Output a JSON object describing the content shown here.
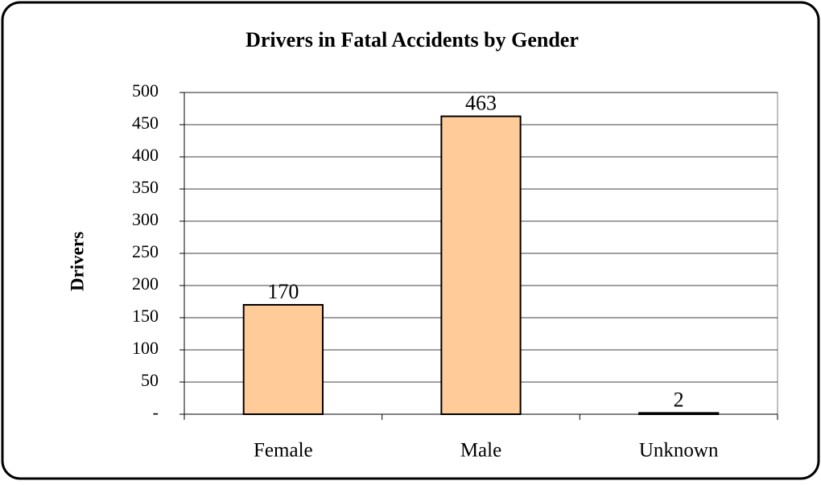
{
  "chart_data": {
    "type": "bar",
    "title": "Drivers in Fatal Accidents by Gender",
    "y_label": "Drivers",
    "categories": [
      "Female",
      "Male",
      "Unknown"
    ],
    "values": [
      170,
      463,
      2
    ],
    "color": "#ffcc99",
    "ylim": [
      0,
      500
    ],
    "yticks": [
      {
        "value": 0,
        "label": "-"
      },
      50,
      100,
      150,
      200,
      250,
      300,
      350,
      400,
      450,
      500
    ],
    "grid": true
  }
}
